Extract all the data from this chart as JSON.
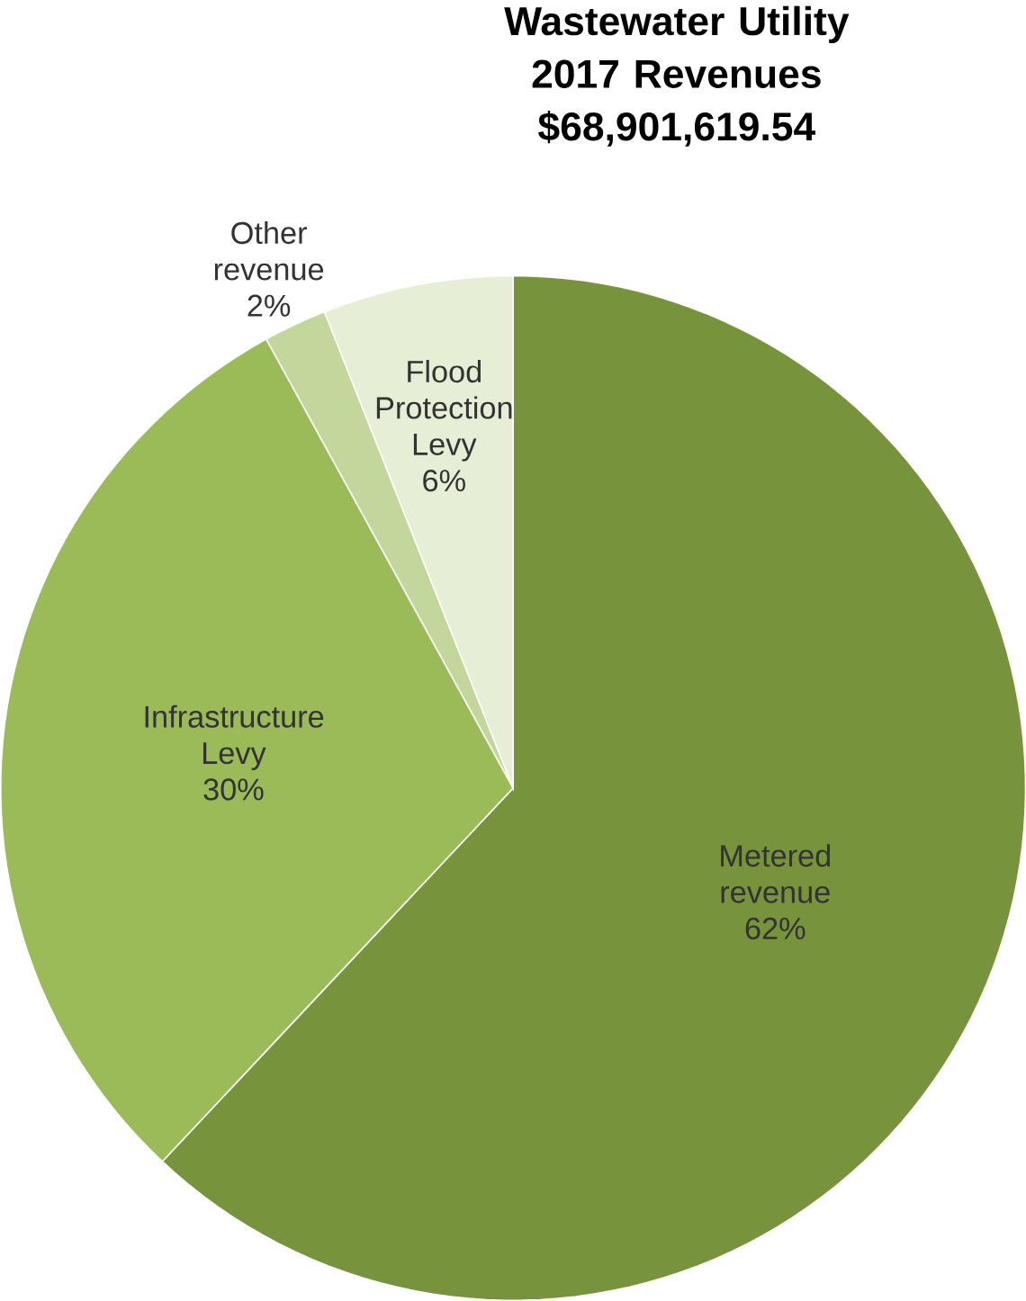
{
  "chart_data": {
    "type": "pie",
    "title": "Wastewater Utility 2017 Revenues",
    "subtitle": "$68,901,619.54",
    "categories": [
      "Metered revenue",
      "Infrastructure Levy",
      "Other revenue",
      "Flood Protection Levy"
    ],
    "values": [
      62,
      30,
      2,
      6
    ],
    "value_labels": [
      "62%",
      "30%",
      "2%",
      "6%"
    ],
    "colors": [
      "#77933c",
      "#9bbb59",
      "#c3d69b",
      "#e6eed5"
    ]
  }
}
